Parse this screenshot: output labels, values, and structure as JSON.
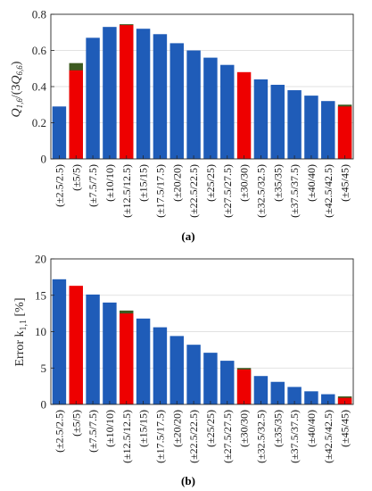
{
  "colors": {
    "main": "#1f5cb8",
    "highlight": "#ee0000",
    "overlay_dark": "#3d5a20",
    "axis": "#262626",
    "grid": "#d9d9d9"
  },
  "chart_data": [
    {
      "type": "bar",
      "panel_label": "(a)",
      "ylabel_parts": [
        "Q",
        "1,6",
        "/(3",
        "Q",
        "6,6",
        ")"
      ],
      "ylim": [
        0,
        0.8
      ],
      "yticks": [
        "0",
        "0.2",
        "0.4",
        "0.6",
        "0.8"
      ],
      "grid": true,
      "categories": [
        "(±2.5/2.5)",
        "(±5/5)",
        "(±7.5/7.5)",
        "(±10/10)",
        "(±12.5/12.5)",
        "(±15/15)",
        "(±17.5/17.5)",
        "(±20/20)",
        "(±22.5/22.5)",
        "(±25/25)",
        "(±27.5/27.5)",
        "(±30/30)",
        "(±32.5/32.5)",
        "(±35/35)",
        "(±37.5/37.5)",
        "(±40/40)",
        "(±42.5/42.5)",
        "(±45/45)"
      ],
      "values": [
        0.29,
        0.49,
        0.67,
        0.73,
        0.74,
        0.72,
        0.69,
        0.64,
        0.6,
        0.56,
        0.52,
        0.48,
        0.44,
        0.41,
        0.38,
        0.35,
        0.32,
        0.29
      ],
      "overlay_values": [
        0,
        0.53,
        0,
        0,
        0.745,
        0,
        0,
        0,
        0,
        0,
        0,
        0,
        0,
        0,
        0,
        0,
        0,
        0.3
      ],
      "highlight_indices": [
        1,
        4,
        11,
        17
      ]
    },
    {
      "type": "bar",
      "panel_label": "(b)",
      "ylabel_main": "Error k",
      "ylabel_sub": "1,1",
      "ylabel_unit": " [%]",
      "ylim": [
        0,
        20
      ],
      "yticks": [
        "0",
        "5",
        "10",
        "15",
        "20"
      ],
      "grid": true,
      "categories": [
        "(±2.5/2.5)",
        "(±5/5)",
        "(±7.5/7.5)",
        "(±10/10)",
        "(±12.5/12.5)",
        "(±15/15)",
        "(±17.5/17.5)",
        "(±20/20)",
        "(±22.5/22.5)",
        "(±25/25)",
        "(±27.5/27.5)",
        "(±30/30)",
        "(±32.5/32.5)",
        "(±35/35)",
        "(±37.5/37.5)",
        "(±40/40)",
        "(±42.5/42.5)",
        "(±45/45)"
      ],
      "values": [
        17.2,
        16.3,
        15.1,
        14.0,
        12.5,
        11.8,
        10.6,
        9.4,
        8.2,
        7.1,
        6.0,
        4.8,
        3.9,
        3.1,
        2.4,
        1.8,
        1.4,
        0.9
      ],
      "overlay_values": [
        0,
        0,
        0,
        0,
        12.9,
        0,
        0,
        0,
        0,
        0,
        0,
        5.0,
        0,
        0,
        0,
        0,
        0,
        1.1
      ],
      "highlight_indices": [
        1,
        4,
        11,
        17
      ]
    }
  ]
}
